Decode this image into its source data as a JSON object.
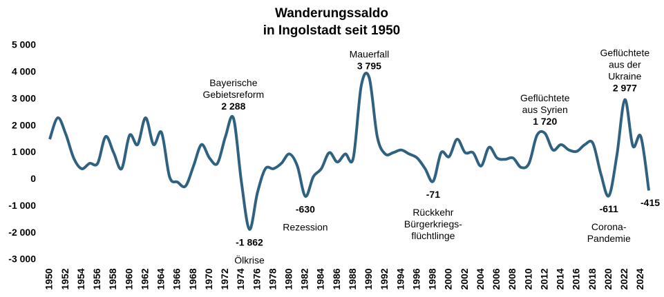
{
  "chart_data": {
    "type": "line",
    "title": [
      "Wanderungssaldo",
      "in Ingolstadt seit 1950"
    ],
    "x": [
      1950,
      1951,
      1952,
      1953,
      1954,
      1955,
      1956,
      1957,
      1958,
      1959,
      1960,
      1961,
      1962,
      1963,
      1964,
      1965,
      1966,
      1967,
      1968,
      1969,
      1970,
      1971,
      1972,
      1973,
      1974,
      1975,
      1976,
      1977,
      1978,
      1979,
      1980,
      1981,
      1982,
      1983,
      1984,
      1985,
      1986,
      1987,
      1988,
      1989,
      1990,
      1991,
      1992,
      1993,
      1994,
      1995,
      1996,
      1997,
      1998,
      1999,
      2000,
      2001,
      2002,
      2003,
      2004,
      2005,
      2006,
      2007,
      2008,
      2009,
      2010,
      2011,
      2012,
      2013,
      2014,
      2015,
      2016,
      2017,
      2018,
      2019,
      2020,
      2021,
      2022,
      2023,
      2024,
      2025
    ],
    "series": [
      {
        "color": "#2f6180",
        "values": [
          1500,
          2300,
          1700,
          800,
          400,
          600,
          600,
          1600,
          1000,
          400,
          1650,
          1300,
          2300,
          1300,
          1750,
          100,
          -100,
          -250,
          500,
          1300,
          800,
          600,
          1600,
          2288,
          -100,
          -1862,
          -500,
          400,
          400,
          600,
          950,
          500,
          -630,
          100,
          400,
          1000,
          650,
          950,
          800,
          3500,
          3795,
          1600,
          950,
          1000,
          1100,
          950,
          800,
          400,
          -71,
          1000,
          850,
          1500,
          1000,
          1000,
          500,
          1200,
          800,
          750,
          800,
          450,
          600,
          1650,
          1720,
          1100,
          1300,
          1100,
          1050,
          1300,
          1350,
          200,
          -611,
          900,
          2977,
          1250,
          1600,
          -415
        ]
      }
    ],
    "annotations": [
      {
        "x": 1973,
        "value": 2288,
        "value_label": "2 288",
        "text": [
          "Bayerische",
          "Gebietsreform"
        ]
      },
      {
        "x": 1975,
        "value": -1862,
        "value_label": "-1 862",
        "text": [
          "Ölkrise"
        ]
      },
      {
        "x": 1982,
        "value": -630,
        "value_label": "-630",
        "text": [
          "Rezession"
        ]
      },
      {
        "x": 1990,
        "value": 3795,
        "value_label": "3 795",
        "text": [
          "Mauerfall"
        ]
      },
      {
        "x": 1998,
        "value": -71,
        "value_label": "-71",
        "text": [
          "Rückkehr",
          "Bürgerkriegs-",
          "flüchtlinge"
        ]
      },
      {
        "x": 2012,
        "value": 1720,
        "value_label": "1 720",
        "text": [
          "Geflüchtete",
          "aus Syrien"
        ]
      },
      {
        "x": 2020,
        "value": -611,
        "value_label": "-611",
        "text": [
          "Corona-",
          "Pandemie"
        ]
      },
      {
        "x": 2022,
        "value": 2977,
        "value_label": "2 977",
        "text": [
          "Geflüchtete",
          "aus der",
          "Ukraine"
        ]
      },
      {
        "x": 2025,
        "value": -415,
        "value_label": "-415",
        "text": []
      }
    ],
    "xlim": [
      1949,
      2026
    ],
    "xticks": [
      1950,
      1952,
      1954,
      1956,
      1958,
      1960,
      1962,
      1964,
      1966,
      1968,
      1970,
      1972,
      1974,
      1976,
      1978,
      1980,
      1982,
      1984,
      1986,
      1988,
      1990,
      1992,
      1994,
      1996,
      1998,
      2000,
      2002,
      2004,
      2006,
      2008,
      2010,
      2012,
      2014,
      2016,
      2018,
      2020,
      2022,
      2024
    ],
    "ylim": [
      -3000,
      5000
    ],
    "yticks": [
      {
        "value": -3000,
        "label": "-3 000"
      },
      {
        "value": -2000,
        "label": "-2 000"
      },
      {
        "value": -1000,
        "label": "-1 000"
      },
      0,
      {
        "value": 1000,
        "label": "1 000"
      },
      {
        "value": 2000,
        "label": "2 000"
      },
      {
        "value": 3000,
        "label": "3 000"
      },
      {
        "value": 4000,
        "label": "4 000"
      },
      {
        "value": 5000,
        "label": "5 000"
      }
    ],
    "grid": false
  }
}
